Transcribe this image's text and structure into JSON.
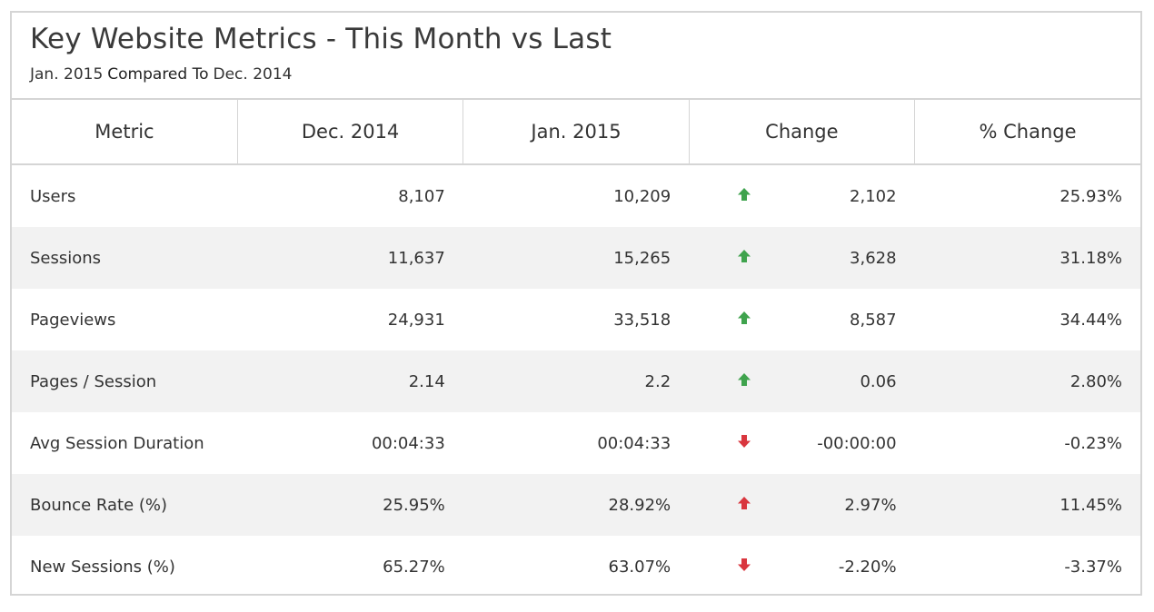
{
  "header": {
    "title": "Key Website Metrics - This Month vs Last",
    "subtitle_current": "Jan. 2015",
    "subtitle_sep": "Compared To",
    "subtitle_previous": "Dec. 2014"
  },
  "table": {
    "columns": [
      "Metric",
      "Dec. 2014",
      "Jan. 2015",
      "Change",
      "% Change"
    ],
    "rows": [
      {
        "metric": "Users",
        "prev": "8,107",
        "curr": "10,209",
        "direction": "up",
        "color": "#3fa34d",
        "change": "2,102",
        "pct": "25.93%"
      },
      {
        "metric": "Sessions",
        "prev": "11,637",
        "curr": "15,265",
        "direction": "up",
        "color": "#3fa34d",
        "change": "3,628",
        "pct": "31.18%"
      },
      {
        "metric": "Pageviews",
        "prev": "24,931",
        "curr": "33,518",
        "direction": "up",
        "color": "#3fa34d",
        "change": "8,587",
        "pct": "34.44%"
      },
      {
        "metric": "Pages / Session",
        "prev": "2.14",
        "curr": "2.2",
        "direction": "up",
        "color": "#3fa34d",
        "change": "0.06",
        "pct": "2.80%"
      },
      {
        "metric": "Avg Session Duration",
        "prev": "00:04:33",
        "curr": "00:04:33",
        "direction": "down",
        "color": "#d9363e",
        "change": "-00:00:00",
        "pct": "-0.23%"
      },
      {
        "metric": "Bounce Rate (%)",
        "prev": "25.95%",
        "curr": "28.92%",
        "direction": "up",
        "color": "#d9363e",
        "change": "2.97%",
        "pct": "11.45%"
      },
      {
        "metric": "New Sessions (%)",
        "prev": "65.27%",
        "curr": "63.07%",
        "direction": "down",
        "color": "#d9363e",
        "change": "-2.20%",
        "pct": "-3.37%"
      }
    ]
  }
}
